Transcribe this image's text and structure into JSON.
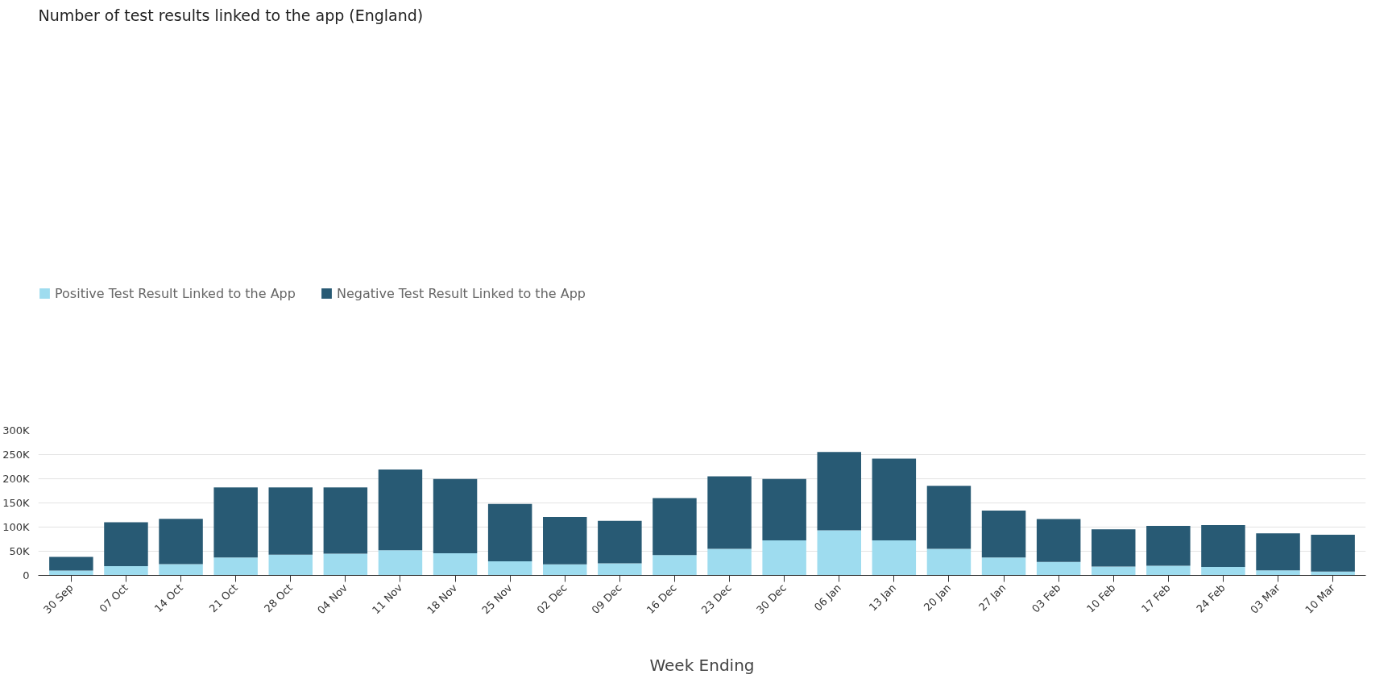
{
  "chart_data": {
    "type": "bar",
    "stacked": true,
    "title": "Number of test results linked to the app (England)",
    "xlabel": "Week Ending",
    "categories": [
      "30 Sep",
      "07 Oct",
      "14 Oct",
      "21 Oct",
      "28 Oct",
      "04 Nov",
      "11 Nov",
      "18 Nov",
      "25 Nov",
      "02 Dec",
      "09 Dec",
      "16 Dec",
      "23 Dec",
      "30 Dec",
      "06 Jan",
      "13 Jan",
      "20 Jan",
      "27 Jan",
      "03 Feb",
      "10 Feb",
      "17 Feb",
      "24 Feb",
      "03 Mar",
      "10 Mar"
    ],
    "series": [
      {
        "name": "Positive Test Result Linked to the App",
        "color": "#9edcef",
        "values": [
          10000,
          19000,
          23500,
          37000,
          43000,
          45000,
          52000,
          46000,
          29000,
          23000,
          25000,
          42000,
          55000,
          72500,
          93500,
          72500,
          55000,
          37000,
          28000,
          18500,
          20000,
          17500,
          10500,
          8000
        ]
      },
      {
        "name": "Negative Test Result Linked to the App",
        "color": "#285a74",
        "values": [
          28500,
          91000,
          93500,
          145000,
          139000,
          137000,
          167000,
          153500,
          119000,
          98000,
          88000,
          118000,
          150000,
          127000,
          162000,
          169000,
          130500,
          97000,
          88500,
          77000,
          82500,
          86500,
          76500,
          76000
        ]
      }
    ],
    "ylim": [
      0,
      300000
    ],
    "yticks": [
      {
        "value": 0,
        "label": "0"
      },
      {
        "value": 50000,
        "label": "50K"
      },
      {
        "value": 100000,
        "label": "100K"
      },
      {
        "value": 150000,
        "label": "150K"
      },
      {
        "value": 200000,
        "label": "200K"
      },
      {
        "value": 250000,
        "label": "250K"
      },
      {
        "value": 300000,
        "label": "300K"
      }
    ],
    "grid": "y",
    "legend": "top left"
  }
}
